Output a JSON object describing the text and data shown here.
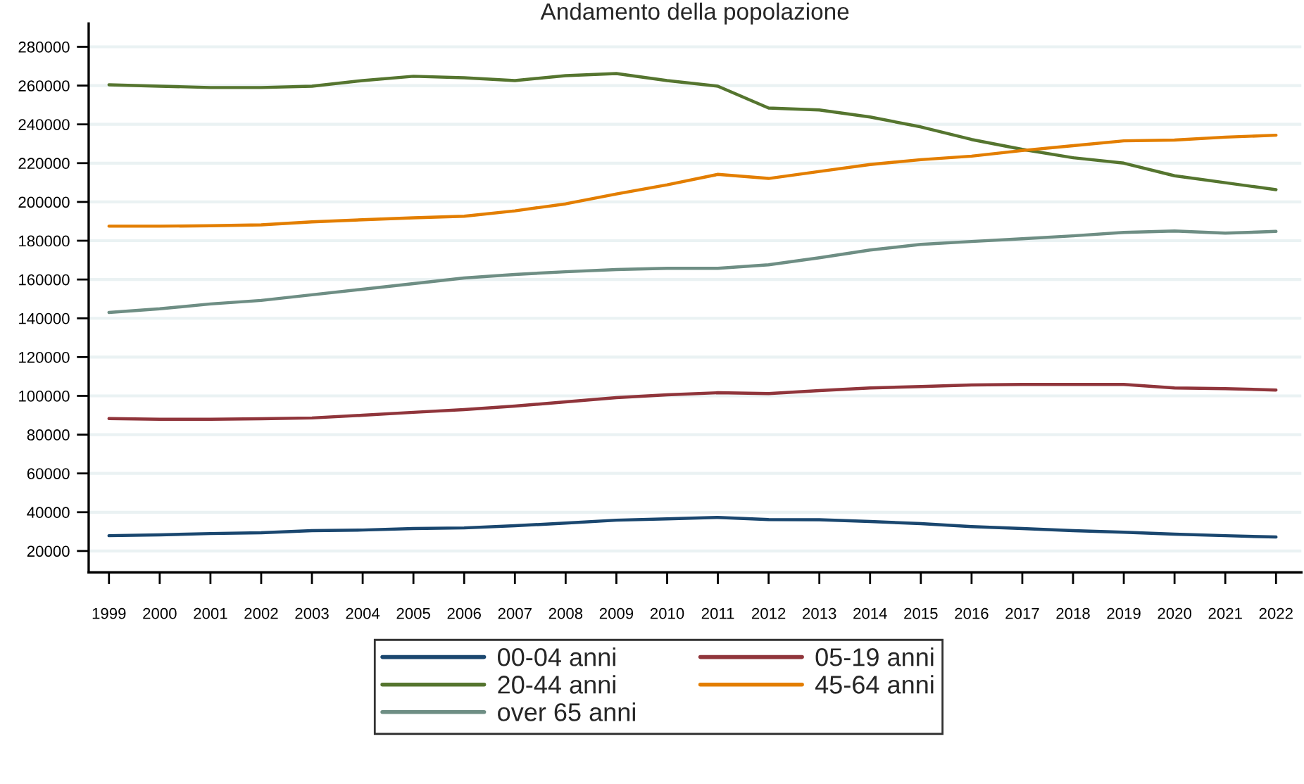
{
  "chart_data": {
    "type": "line",
    "title": "Andamento della popolazione",
    "x": [
      1999,
      2000,
      2001,
      2002,
      2003,
      2004,
      2005,
      2006,
      2007,
      2008,
      2009,
      2010,
      2011,
      2012,
      2013,
      2014,
      2015,
      2016,
      2017,
      2018,
      2019,
      2020,
      2021,
      2022
    ],
    "xlim": [
      1998.6,
      2022.5
    ],
    "xticks": [
      1999,
      2000,
      2001,
      2002,
      2003,
      2004,
      2005,
      2006,
      2007,
      2008,
      2009,
      2010,
      2011,
      2012,
      2013,
      2014,
      2015,
      2016,
      2017,
      2018,
      2019,
      2020,
      2021,
      2022
    ],
    "ylim": [
      9000,
      292000
    ],
    "yticks": [
      20000,
      40000,
      60000,
      80000,
      100000,
      120000,
      140000,
      160000,
      180000,
      200000,
      220000,
      240000,
      260000,
      280000
    ],
    "grid": "y",
    "legend": "bottom",
    "line_style": "solid",
    "marker": "none",
    "series": [
      {
        "name": "00-04 anni",
        "color": "#1a476f",
        "values": [
          27900,
          28300,
          29000,
          29400,
          30500,
          30800,
          31600,
          31900,
          33000,
          34400,
          35900,
          36600,
          37300,
          36200,
          36100,
          35200,
          34100,
          32600,
          31600,
          30500,
          29700,
          28700,
          27900,
          27200
        ]
      },
      {
        "name": "05-19 anni",
        "color": "#90353b",
        "values": [
          88300,
          87900,
          87900,
          88200,
          88600,
          90000,
          91500,
          92900,
          94700,
          96900,
          99100,
          100500,
          101600,
          101200,
          102700,
          104100,
          104800,
          105600,
          105900,
          105900,
          105900,
          104100,
          103700,
          103000
        ]
      },
      {
        "name": "20-44 anni",
        "color": "#55752f",
        "values": [
          260400,
          259700,
          259000,
          259000,
          259700,
          262600,
          264800,
          264000,
          262600,
          265100,
          266200,
          262600,
          259700,
          248400,
          247400,
          243800,
          238700,
          232200,
          227100,
          222800,
          220000,
          213500,
          209900,
          206300
        ]
      },
      {
        "name": "45-64 anni",
        "color": "#e37e00",
        "values": [
          187500,
          187500,
          187700,
          188200,
          189700,
          190800,
          191800,
          192600,
          195400,
          199000,
          204100,
          208800,
          214200,
          212100,
          215700,
          219300,
          221800,
          223600,
          226500,
          229000,
          231500,
          231900,
          233400,
          234400
        ]
      },
      {
        "name": "over 65 anni",
        "color": "#6e8e84",
        "values": [
          143000,
          144900,
          147400,
          149200,
          152100,
          155000,
          157900,
          160800,
          162600,
          164000,
          165100,
          165800,
          165800,
          167600,
          171200,
          175200,
          178100,
          179600,
          181000,
          182500,
          184300,
          185000,
          183900,
          184800
        ]
      }
    ]
  }
}
